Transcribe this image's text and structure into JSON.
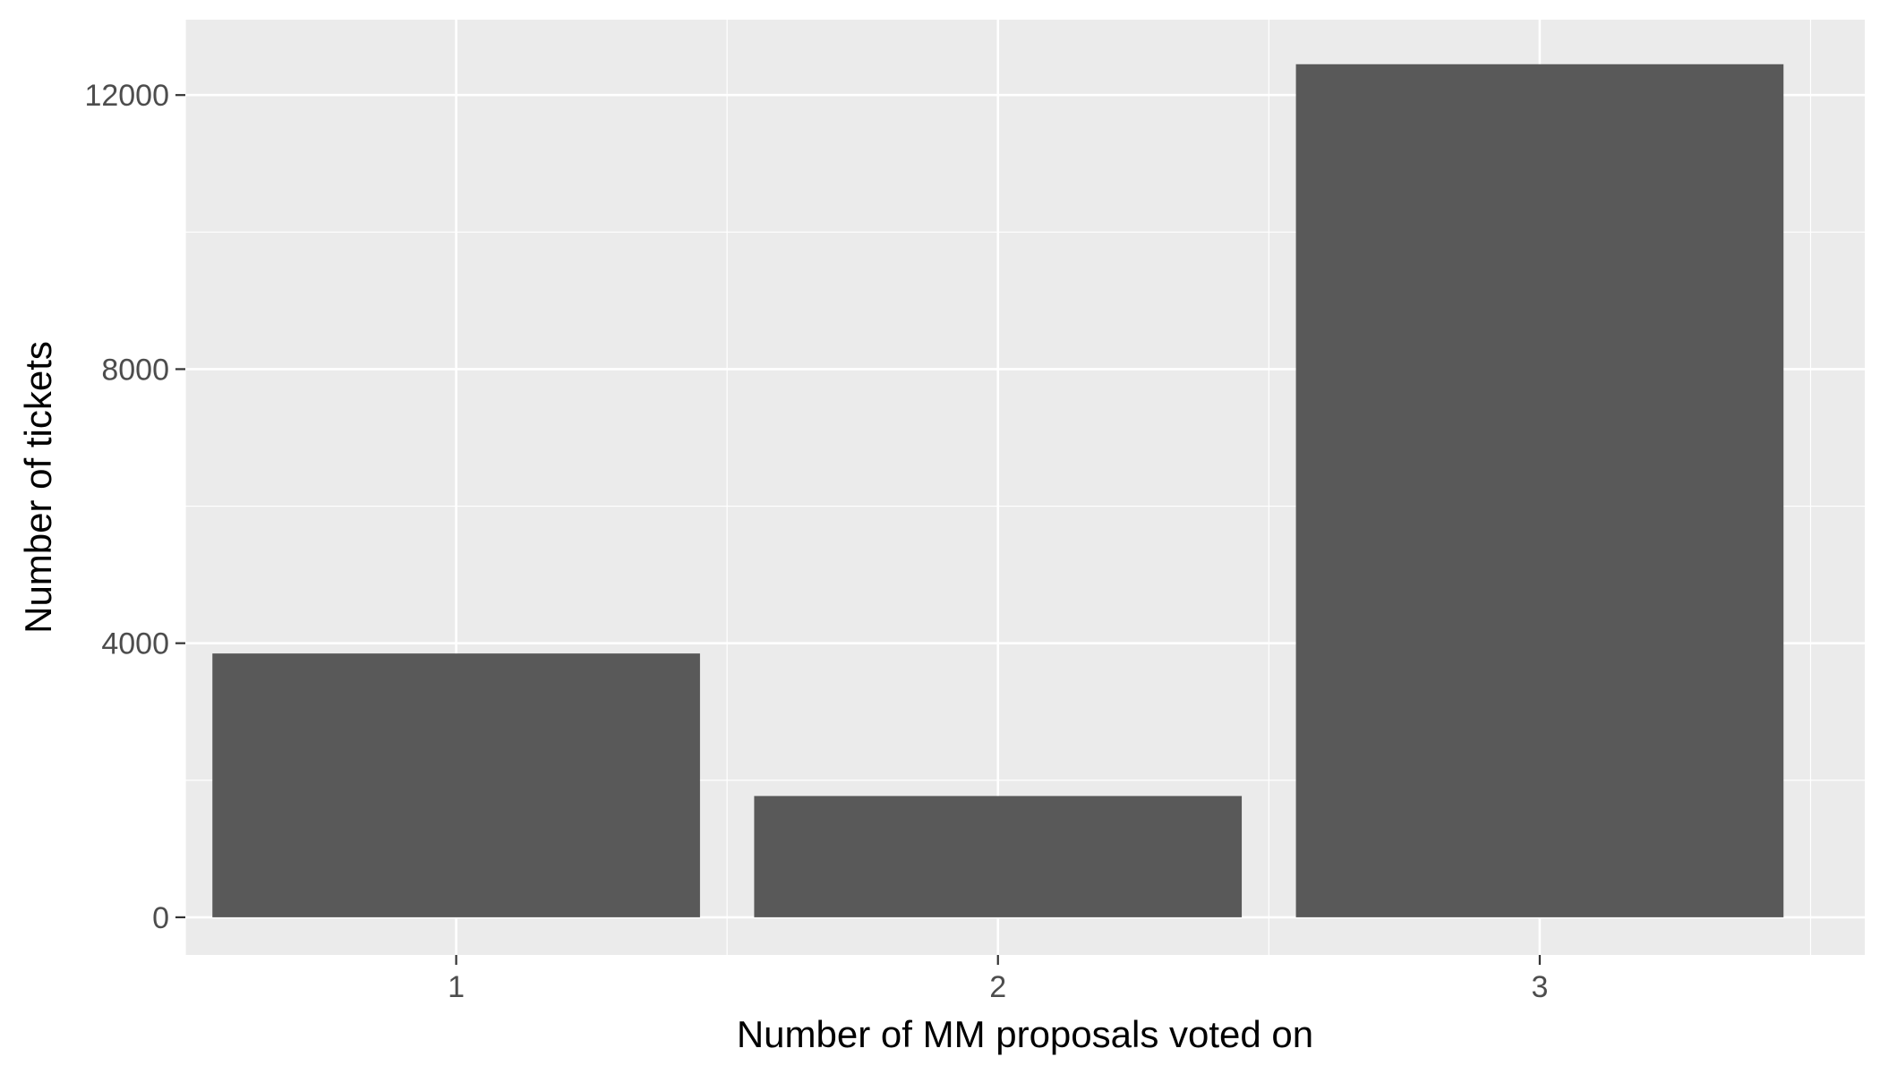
{
  "chart_data": {
    "type": "bar",
    "categories": [
      "1",
      "2",
      "3"
    ],
    "values": [
      3850,
      1770,
      12450
    ],
    "xlabel": "Number of MM proposals voted on",
    "ylabel": "Number of tickets",
    "ylim": [
      -550,
      13100
    ],
    "yticks": [
      0,
      4000,
      8000,
      12000
    ],
    "ytick_labels": [
      "0",
      "4000",
      "8000",
      "12000"
    ],
    "grid": true,
    "legend": "none"
  },
  "colors": {
    "panel_background": "#ebebeb",
    "grid_major": "#ffffff",
    "bar_fill": "#595959",
    "tick_mark": "#333333",
    "tick_text": "#4d4d4d",
    "title_text": "#000000"
  }
}
